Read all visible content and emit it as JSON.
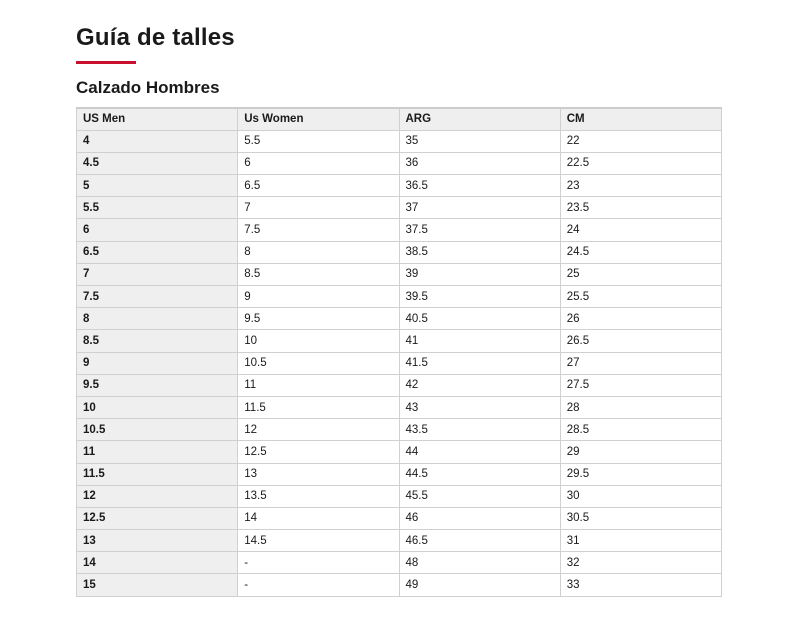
{
  "title": "Guía de talles",
  "accent_color": "#c8102e",
  "section_title": "Calzado Hombres",
  "table": {
    "headers": [
      "US Men",
      "Us Women",
      "ARG",
      "CM"
    ],
    "rows": [
      [
        "4",
        "5.5",
        "35",
        "22"
      ],
      [
        "4.5",
        "6",
        "36",
        "22.5"
      ],
      [
        "5",
        "6.5",
        "36.5",
        "23"
      ],
      [
        "5.5",
        "7",
        "37",
        "23.5"
      ],
      [
        "6",
        "7.5",
        "37.5",
        "24"
      ],
      [
        "6.5",
        "8",
        "38.5",
        "24.5"
      ],
      [
        "7",
        "8.5",
        "39",
        "25"
      ],
      [
        "7.5",
        "9",
        "39.5",
        "25.5"
      ],
      [
        "8",
        "9.5",
        "40.5",
        "26"
      ],
      [
        "8.5",
        "10",
        "41",
        "26.5"
      ],
      [
        "9",
        "10.5",
        "41.5",
        "27"
      ],
      [
        "9.5",
        "11",
        "42",
        "27.5"
      ],
      [
        "10",
        "11.5",
        "43",
        "28"
      ],
      [
        "10.5",
        "12",
        "43.5",
        "28.5"
      ],
      [
        "11",
        "12.5",
        "44",
        "29"
      ],
      [
        "11.5",
        "13",
        "44.5",
        "29.5"
      ],
      [
        "12",
        "13.5",
        "45.5",
        "30"
      ],
      [
        "12.5",
        "14",
        "46",
        "30.5"
      ],
      [
        "13",
        "14.5",
        "46.5",
        "31"
      ],
      [
        "14",
        "-",
        "48",
        "32"
      ],
      [
        "15",
        "-",
        "49",
        "33"
      ]
    ]
  }
}
